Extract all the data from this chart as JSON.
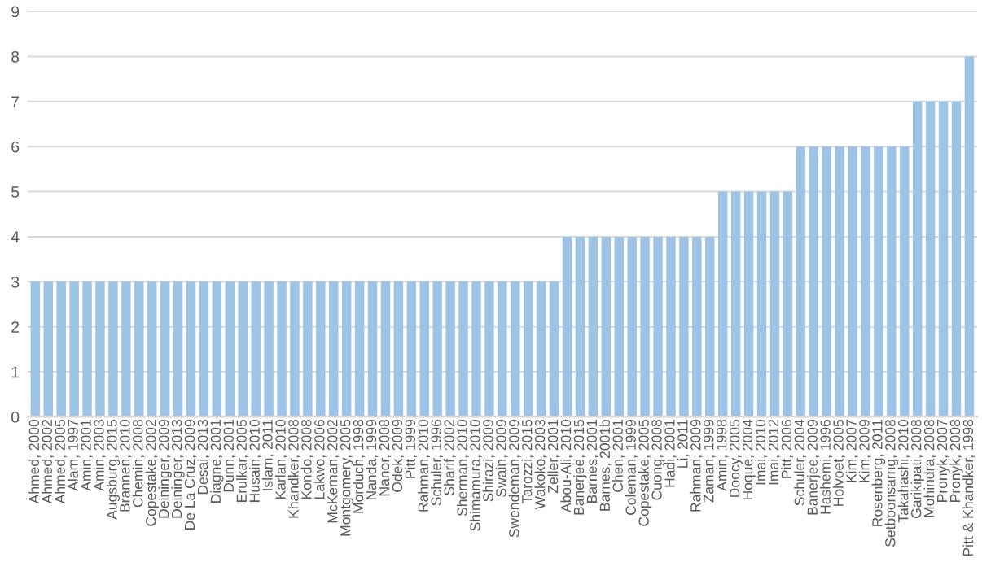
{
  "chart_data": {
    "type": "bar",
    "categories": [
      "Ahmed, 2000",
      "Ahmed, 2002",
      "Ahmed, 2005",
      "Alam, 1997",
      "Amin, 2001",
      "Amin, 2003",
      "Augsburg, 2015",
      "Brannen, 2010",
      "Chemin, 2008",
      "Copestake, 2002",
      "Deininger, 2009",
      "Deininger, 2013",
      "De La Cruz, 2009",
      "Desai, 2013",
      "Diagne, 2001",
      "Dunn, 2001",
      "Erulkar, 2005",
      "Husain, 2010",
      "Islam, 2011",
      "Karlan, 2010",
      "Khandker, 2008",
      "Kondo, 2008",
      "Lakwo, 2006",
      "McKernan, 2002",
      "Montgomery, 2005",
      "Morduch, 1998",
      "Nanda, 1999",
      "Nanor, 2008",
      "Odek, 2009",
      "Pitt, 1999",
      "Rahman, 2010",
      "Schuler, 1996",
      "Sharif, 2002",
      "Sherman, 2010",
      "Shimamura, 2010",
      "Shirazi, 2009",
      "Swain, 2009",
      "Swendeman, 2009",
      "Tarozzi, 2015",
      "Wakoko, 2003",
      "Zeller, 2001",
      "Abou-Ali, 2010",
      "Banerjee, 2015",
      "Barnes, 2001",
      "Barnes, 2001b",
      "Chen, 2001",
      "Coleman, 1999",
      "Copestake, 2005",
      "Cuong, 2008",
      "Hadi, 2001",
      "Li, 2011",
      "Rahman, 2009",
      "Zaman, 1999",
      "Amin, 1998",
      "Doocy, 2005",
      "Hoque, 2004",
      "Imai, 2010",
      "Imai, 2012",
      "Pitt, 2006",
      "Schuler, 2004",
      "Banerjee, 2009",
      "Hashemi, 1996",
      "Holvoet, 2005",
      "Kim, 2007",
      "Kim, 2009",
      "Rosenberg, 2011",
      "Setboonsarng, 2008",
      "Takahashi, 2010",
      "Garikipati, 2008",
      "Mohindra, 2008",
      "Pronyk, 2007",
      "Pronyk, 2008",
      "Pitt & Khandker, 1998"
    ],
    "values": [
      3,
      3,
      3,
      3,
      3,
      3,
      3,
      3,
      3,
      3,
      3,
      3,
      3,
      3,
      3,
      3,
      3,
      3,
      3,
      3,
      3,
      3,
      3,
      3,
      3,
      3,
      3,
      3,
      3,
      3,
      3,
      3,
      3,
      3,
      3,
      3,
      3,
      3,
      3,
      3,
      3,
      4,
      4,
      4,
      4,
      4,
      4,
      4,
      4,
      4,
      4,
      4,
      4,
      5,
      5,
      5,
      5,
      5,
      5,
      6,
      6,
      6,
      6,
      6,
      6,
      6,
      6,
      6,
      7,
      7,
      7,
      7,
      8
    ],
    "color": "#9dc3e6",
    "ylim": [
      0,
      9
    ],
    "yticks": [
      0,
      1,
      2,
      3,
      4,
      5,
      6,
      7,
      8,
      9
    ],
    "grid": "y"
  }
}
